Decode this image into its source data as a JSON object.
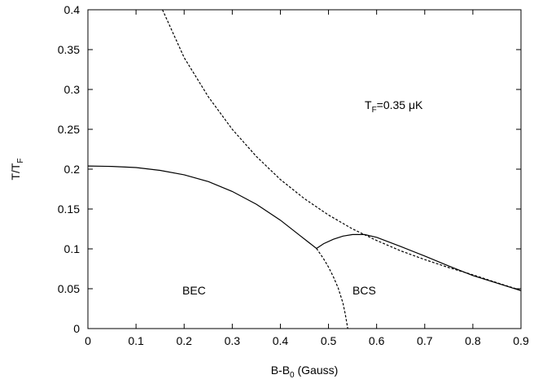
{
  "chart_data": {
    "type": "line",
    "xlabel_main": "B-B",
    "xlabel_sub": "0",
    "xlabel_tail": " (Gauss)",
    "ylabel_main": "T/T",
    "ylabel_sub": "F",
    "xlim": [
      0,
      0.9
    ],
    "ylim": [
      0,
      0.4
    ],
    "xticks": [
      0,
      0.1,
      0.2,
      0.3,
      0.4,
      0.5,
      0.6,
      0.7,
      0.8,
      0.9
    ],
    "xtick_labels": [
      "0",
      "0.1",
      "0.2",
      "0.3",
      "0.4",
      "0.5",
      "0.6",
      "0.7",
      "0.8",
      "0.9"
    ],
    "yticks": [
      0,
      0.05,
      0.1,
      0.15,
      0.2,
      0.25,
      0.3,
      0.35,
      0.4
    ],
    "ytick_labels": [
      "0",
      "0.05",
      "0.1",
      "0.15",
      "0.2",
      "0.25",
      "0.3",
      "0.35",
      "0.4"
    ],
    "grid": false,
    "annotations": {
      "tf_main": "T",
      "tf_sub": "F",
      "tf_tail": "=0.35 μK",
      "bec": "BEC",
      "bcs": "BCS"
    },
    "series": [
      {
        "style": "solid",
        "x": [
          0,
          0.05,
          0.1,
          0.15,
          0.2,
          0.25,
          0.3,
          0.35,
          0.4,
          0.44,
          0.475
        ],
        "y": [
          0.204,
          0.2035,
          0.202,
          0.1985,
          0.193,
          0.1845,
          0.172,
          0.156,
          0.136,
          0.117,
          0.1005
        ]
      },
      {
        "style": "solid",
        "x": [
          0.475,
          0.49,
          0.51,
          0.53,
          0.55,
          0.575,
          0.6,
          0.65,
          0.7,
          0.75,
          0.8,
          0.85,
          0.9
        ],
        "y": [
          0.1005,
          0.1065,
          0.112,
          0.116,
          0.118,
          0.118,
          0.1145,
          0.103,
          0.091,
          0.0785,
          0.0665,
          0.057,
          0.0475
        ]
      },
      {
        "style": "dashed",
        "x": [
          0.475,
          0.49,
          0.5,
          0.51,
          0.52,
          0.53,
          0.535,
          0.54
        ],
        "y": [
          0.1005,
          0.0875,
          0.077,
          0.065,
          0.051,
          0.032,
          0.018,
          0.0
        ]
      },
      {
        "style": "dashed",
        "x": [
          0.155,
          0.2,
          0.25,
          0.3,
          0.35,
          0.4,
          0.45,
          0.5,
          0.55,
          0.6,
          0.65,
          0.7,
          0.75,
          0.8,
          0.85,
          0.9
        ],
        "y": [
          0.4,
          0.34,
          0.291,
          0.25,
          0.216,
          0.187,
          0.163,
          0.1425,
          0.125,
          0.1105,
          0.0975,
          0.0865,
          0.0765,
          0.0675,
          0.0575,
          0.048
        ]
      }
    ]
  }
}
